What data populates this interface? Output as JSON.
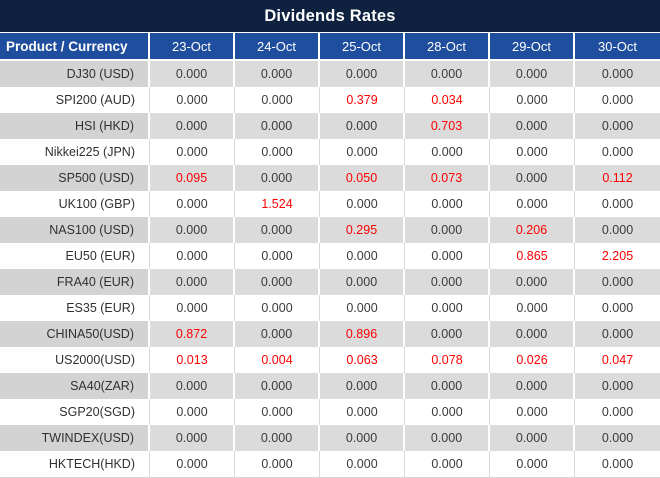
{
  "title": "Dividends Rates",
  "colors": {
    "title_bg": "#0E2240",
    "header_bg": "#1F4E9E",
    "row_alt_bg": "#DBDBDB",
    "zero_text": "#3A3A3A",
    "nonzero_text": "#FF0000"
  },
  "table": {
    "product_header": "Product / Currency",
    "date_headers": [
      "23-Oct",
      "24-Oct",
      "25-Oct",
      "28-Oct",
      "29-Oct",
      "30-Oct"
    ],
    "zero_value": "0.000",
    "rows": [
      {
        "product": "DJ30 (USD)",
        "values": [
          "0.000",
          "0.000",
          "0.000",
          "0.000",
          "0.000",
          "0.000"
        ]
      },
      {
        "product": "SPI200 (AUD)",
        "values": [
          "0.000",
          "0.000",
          "0.379",
          "0.034",
          "0.000",
          "0.000"
        ]
      },
      {
        "product": "HSI (HKD)",
        "values": [
          "0.000",
          "0.000",
          "0.000",
          "0.703",
          "0.000",
          "0.000"
        ]
      },
      {
        "product": "Nikkei225 (JPN)",
        "values": [
          "0.000",
          "0.000",
          "0.000",
          "0.000",
          "0.000",
          "0.000"
        ]
      },
      {
        "product": "SP500 (USD)",
        "values": [
          "0.095",
          "0.000",
          "0.050",
          "0.073",
          "0.000",
          "0.112"
        ]
      },
      {
        "product": "UK100 (GBP)",
        "values": [
          "0.000",
          "1.524",
          "0.000",
          "0.000",
          "0.000",
          "0.000"
        ]
      },
      {
        "product": "NAS100 (USD)",
        "values": [
          "0.000",
          "0.000",
          "0.295",
          "0.000",
          "0.206",
          "0.000"
        ]
      },
      {
        "product": "EU50 (EUR)",
        "values": [
          "0.000",
          "0.000",
          "0.000",
          "0.000",
          "0.865",
          "2.205"
        ]
      },
      {
        "product": "FRA40 (EUR)",
        "values": [
          "0.000",
          "0.000",
          "0.000",
          "0.000",
          "0.000",
          "0.000"
        ]
      },
      {
        "product": "ES35 (EUR)",
        "values": [
          "0.000",
          "0.000",
          "0.000",
          "0.000",
          "0.000",
          "0.000"
        ]
      },
      {
        "product": "CHINA50(USD)",
        "values": [
          "0.872",
          "0.000",
          "0.896",
          "0.000",
          "0.000",
          "0.000"
        ]
      },
      {
        "product": "US2000(USD)",
        "values": [
          "0.013",
          "0.004",
          "0.063",
          "0.078",
          "0.026",
          "0.047"
        ]
      },
      {
        "product": "SA40(ZAR)",
        "values": [
          "0.000",
          "0.000",
          "0.000",
          "0.000",
          "0.000",
          "0.000"
        ]
      },
      {
        "product": "SGP20(SGD)",
        "values": [
          "0.000",
          "0.000",
          "0.000",
          "0.000",
          "0.000",
          "0.000"
        ]
      },
      {
        "product": "TWINDEX(USD)",
        "values": [
          "0.000",
          "0.000",
          "0.000",
          "0.000",
          "0.000",
          "0.000"
        ]
      },
      {
        "product": "HKTECH(HKD)",
        "values": [
          "0.000",
          "0.000",
          "0.000",
          "0.000",
          "0.000",
          "0.000"
        ]
      }
    ]
  }
}
